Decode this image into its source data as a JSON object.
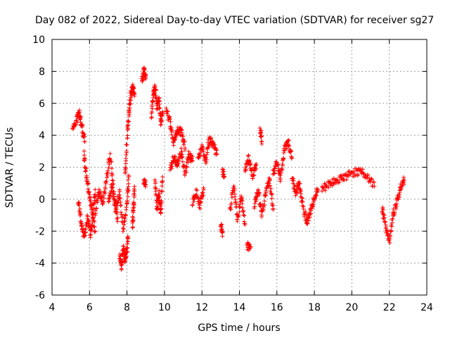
{
  "chart_data": {
    "type": "scatter",
    "title": "Day 082 of 2022, Sidereal Day-to-day VTEC variation (SDTVAR) for receiver sg27",
    "xlabel": "GPS time / hours",
    "ylabel": "SDTVAR / TECUs",
    "xlim": [
      4,
      24
    ],
    "ylim": [
      -6,
      10
    ],
    "xticks": [
      "4",
      "6",
      "8",
      "10",
      "12",
      "14",
      "16",
      "18",
      "20",
      "22",
      "24"
    ],
    "yticks": [
      "-6",
      "-4",
      "-2",
      "0",
      "2",
      "4",
      "6",
      "8",
      "10"
    ],
    "grid": true,
    "marker": "+",
    "color": "#ff0000",
    "series": [
      {
        "name": "SDTVAR",
        "segments": [
          {
            "x": [
              5.1,
              5.3,
              5.45,
              5.6,
              5.75
            ],
            "y": [
              4.3,
              4.9,
              5.4,
              4.6,
              3.6
            ]
          },
          {
            "x": [
              5.4,
              5.55,
              5.7,
              5.9,
              6.05,
              6.2,
              6.3
            ],
            "y": [
              0.0,
              -1.4,
              -2.4,
              -1.2,
              -2.2,
              -1.0,
              0.6
            ]
          },
          {
            "x": [
              5.7,
              5.85,
              6.0,
              6.15,
              6.3
            ],
            "y": [
              2.8,
              1.4,
              0.2,
              -0.8,
              -2.0
            ]
          },
          {
            "x": [
              6.3,
              6.5,
              6.7,
              6.9,
              7.1,
              7.3,
              7.5
            ],
            "y": [
              -1.0,
              0.6,
              -0.2,
              1.2,
              2.8,
              0.4,
              -1.4
            ]
          },
          {
            "x": [
              7.0,
              7.2,
              7.4,
              7.6,
              7.8,
              8.0,
              8.1
            ],
            "y": [
              -0.2,
              0.8,
              -0.6,
              0.4,
              -1.8,
              -0.4,
              1.4
            ]
          },
          {
            "x": [
              7.6,
              7.7,
              7.8,
              7.9,
              8.0,
              8.05
            ],
            "y": [
              -3.6,
              -4.2,
              -3.0,
              -3.8,
              -3.2,
              -2.4
            ]
          },
          {
            "x": [
              7.9,
              8.0,
              8.1,
              8.2,
              8.3,
              8.4
            ],
            "y": [
              1.6,
              3.8,
              5.4,
              6.5,
              7.0,
              6.6
            ]
          },
          {
            "x": [
              8.3,
              8.35,
              8.4
            ],
            "y": [
              -1.6,
              -0.6,
              0.8
            ]
          },
          {
            "x": [
              8.8,
              8.9,
              9.0
            ],
            "y": [
              7.4,
              8.1,
              7.6
            ]
          },
          {
            "x": [
              8.9,
              9.0
            ],
            "y": [
              1.2,
              0.9
            ]
          },
          {
            "x": [
              9.3,
              9.4,
              9.5,
              9.6,
              9.7,
              9.8,
              9.9
            ],
            "y": [
              5.2,
              6.6,
              7.0,
              5.8,
              6.2,
              4.8,
              5.4
            ]
          },
          {
            "x": [
              9.5,
              9.6,
              9.7,
              9.8,
              9.9
            ],
            "y": [
              1.2,
              -0.6,
              0.4,
              -0.8,
              1.4
            ]
          },
          {
            "x": [
              10.1,
              10.3,
              10.5,
              10.7,
              10.9,
              11.1
            ],
            "y": [
              5.6,
              4.8,
              3.6,
              4.4,
              4.2,
              3.2
            ]
          },
          {
            "x": [
              10.3,
              10.5,
              10.7,
              10.9,
              11.1,
              11.3,
              11.5
            ],
            "y": [
              1.8,
              2.6,
              2.2,
              3.0,
              1.6,
              2.8,
              2.4
            ]
          },
          {
            "x": [
              11.5,
              11.7,
              11.9,
              12.1
            ],
            "y": [
              -0.2,
              0.4,
              -0.4,
              0.6
            ]
          },
          {
            "x": [
              11.8,
              12.0,
              12.2,
              12.4,
              12.6,
              12.8
            ],
            "y": [
              2.6,
              3.2,
              2.4,
              3.8,
              3.4,
              2.8
            ]
          },
          {
            "x": [
              13.0,
              13.1
            ],
            "y": [
              -1.6,
              -2.1
            ]
          },
          {
            "x": [
              13.1,
              13.2
            ],
            "y": [
              1.8,
              1.4
            ]
          },
          {
            "x": [
              13.5,
              13.7,
              13.9,
              14.1,
              14.3
            ],
            "y": [
              -0.6,
              0.8,
              -1.2,
              0.2,
              -1.6
            ]
          },
          {
            "x": [
              14.3,
              14.5,
              14.7,
              14.9
            ],
            "y": [
              1.8,
              2.6,
              1.4,
              2.2
            ]
          },
          {
            "x": [
              14.4,
              14.6
            ],
            "y": [
              -2.9,
              -3.0
            ]
          },
          {
            "x": [
              14.8,
              15.0,
              15.2,
              15.4,
              15.6,
              15.8
            ],
            "y": [
              -0.4,
              0.6,
              -1.0,
              0.4,
              1.2,
              -0.6
            ]
          },
          {
            "x": [
              15.1,
              15.2
            ],
            "y": [
              4.4,
              3.6
            ]
          },
          {
            "x": [
              15.8,
              16.0,
              16.2,
              16.4,
              16.6,
              16.8
            ],
            "y": [
              1.6,
              2.4,
              1.2,
              3.2,
              3.6,
              2.6
            ]
          },
          {
            "x": [
              16.8,
              17.0,
              17.2,
              17.4,
              17.6,
              17.8,
              18.0,
              18.2
            ],
            "y": [
              1.4,
              0.4,
              1.0,
              -0.6,
              -1.4,
              -0.8,
              0.2,
              0.6
            ]
          },
          {
            "x": [
              18.4,
              18.8,
              19.2,
              19.6,
              20.0,
              20.4,
              20.8,
              21.2
            ],
            "y": [
              0.6,
              1.0,
              1.2,
              1.4,
              1.6,
              1.8,
              1.4,
              0.8
            ]
          },
          {
            "x": [
              21.6,
              21.8,
              22.0,
              22.2,
              22.4,
              22.6,
              22.8
            ],
            "y": [
              -0.6,
              -1.6,
              -2.8,
              -1.0,
              -0.2,
              0.8,
              1.2
            ]
          }
        ]
      }
    ]
  }
}
